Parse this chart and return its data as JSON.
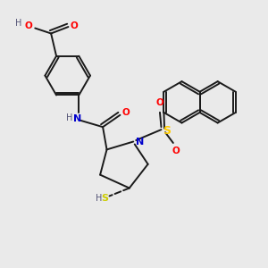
{
  "bg_color": "#eaeaea",
  "bond_color": "#1a1a1a",
  "O_color": "#ff0000",
  "N_color": "#0000cc",
  "S_sulfonyl_color": "#ffcc00",
  "S_thiol_color": "#cccc00",
  "H_color": "#555577",
  "lw": 1.4,
  "xlim": [
    0,
    10
  ],
  "ylim": [
    0,
    10
  ]
}
